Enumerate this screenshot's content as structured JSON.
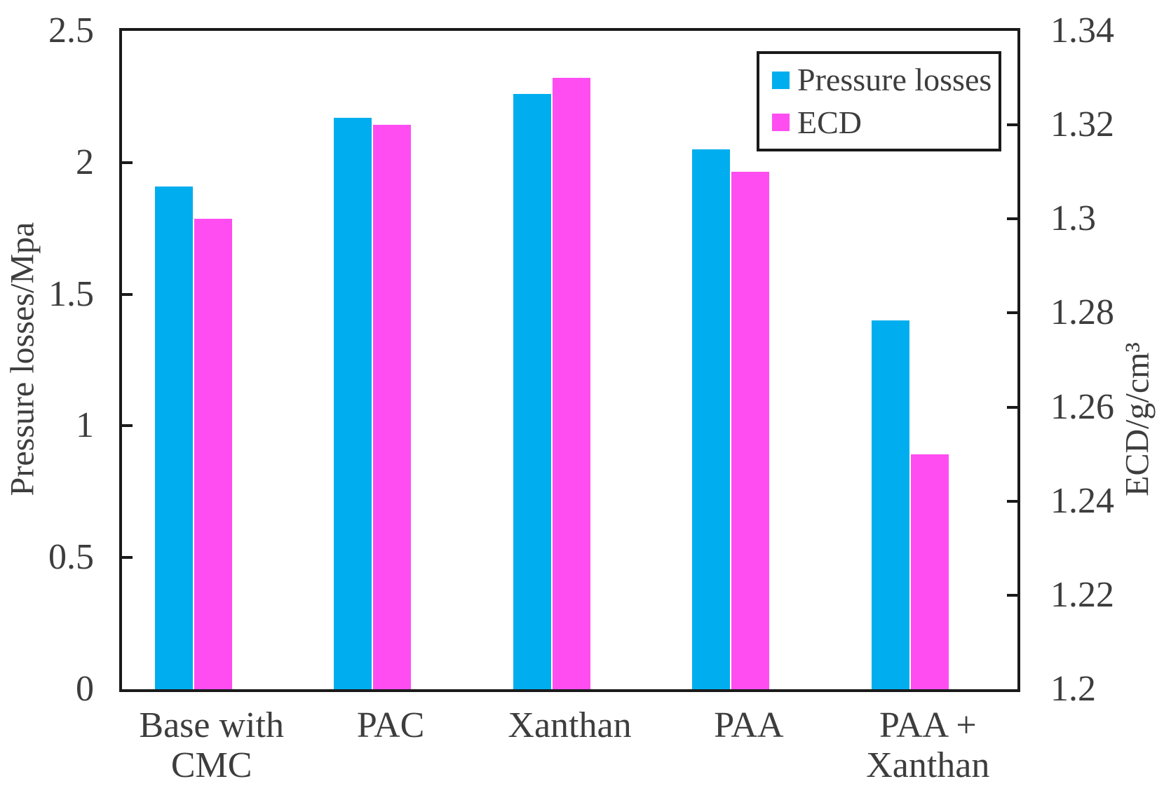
{
  "figure": {
    "background": "#ffffff",
    "axis_color": "#1a1a1a",
    "text_color": "#3d3d3d"
  },
  "chart_data": {
    "type": "bar",
    "categories": [
      "Base with\nCMC",
      "PAC",
      "Xanthan",
      "PAA",
      "PAA +\nXanthan"
    ],
    "series": [
      {
        "name": "Pressure losses",
        "axis": "left",
        "color": "#00aeef",
        "values": [
          1.91,
          2.17,
          2.26,
          2.05,
          1.4
        ]
      },
      {
        "name": "ECD",
        "axis": "right",
        "color": "#ff4df2",
        "values": [
          1.3,
          1.32,
          1.33,
          1.31,
          1.25
        ]
      }
    ],
    "left_axis": {
      "label": "Pressure losses/Mpa",
      "min": 0,
      "max": 2.5,
      "tick_values": [
        0,
        0.5,
        1,
        1.5,
        2,
        2.5
      ],
      "tick_labels": [
        "0",
        "0.5",
        "1",
        "1.5",
        "2",
        "2.5"
      ]
    },
    "right_axis": {
      "label": "ECD/g/cm³",
      "min": 1.2,
      "max": 1.34,
      "tick_values": [
        1.2,
        1.22,
        1.24,
        1.26,
        1.28,
        1.3,
        1.32,
        1.34
      ],
      "tick_labels": [
        "1.2",
        "1.22",
        "1.24",
        "1.26",
        "1.28",
        "1.3",
        "1.32",
        "1.34"
      ]
    },
    "legend": {
      "position": "top-right",
      "entries": [
        "Pressure losses",
        "ECD"
      ]
    },
    "grid": false
  }
}
